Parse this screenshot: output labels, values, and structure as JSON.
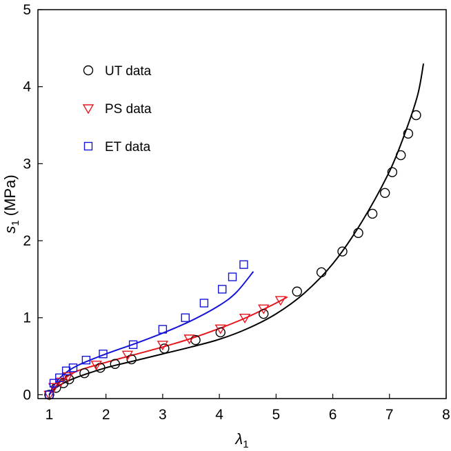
{
  "chart_data": {
    "type": "scatter",
    "xlabel": "λ",
    "xlabel_sub": "1",
    "ylabel": "s",
    "ylabel_sub": "1",
    "ylabel_unit": " (MPa)",
    "xlim": [
      0.8,
      8
    ],
    "ylim": [
      -0.05,
      5
    ],
    "xticks": [
      1,
      2,
      3,
      4,
      5,
      6,
      7,
      8
    ],
    "yticks": [
      0,
      1,
      2,
      3,
      4,
      5
    ],
    "grid": false,
    "legend_position": "top-left",
    "series": [
      {
        "name": "UT data",
        "marker": "circle",
        "color": "#000000",
        "points": [
          [
            1.0,
            0.0
          ],
          [
            1.12,
            0.09
          ],
          [
            1.25,
            0.15
          ],
          [
            1.35,
            0.2
          ],
          [
            1.62,
            0.28
          ],
          [
            1.9,
            0.35
          ],
          [
            2.16,
            0.4
          ],
          [
            2.45,
            0.46
          ],
          [
            3.03,
            0.6
          ],
          [
            3.58,
            0.71
          ],
          [
            4.02,
            0.81
          ],
          [
            4.78,
            1.05
          ],
          [
            5.37,
            1.34
          ],
          [
            5.8,
            1.59
          ],
          [
            6.17,
            1.86
          ],
          [
            6.45,
            2.1
          ],
          [
            6.7,
            2.35
          ],
          [
            6.92,
            2.62
          ],
          [
            7.05,
            2.89
          ],
          [
            7.2,
            3.11
          ],
          [
            7.33,
            3.39
          ],
          [
            7.47,
            3.63
          ]
        ]
      },
      {
        "name": "PS data",
        "marker": "triangle-down",
        "color": "#e8141c",
        "points": [
          [
            1.0,
            0.0
          ],
          [
            1.08,
            0.1
          ],
          [
            1.2,
            0.17
          ],
          [
            1.33,
            0.24
          ],
          [
            1.83,
            0.39
          ],
          [
            2.38,
            0.52
          ],
          [
            3.0,
            0.65
          ],
          [
            3.47,
            0.73
          ],
          [
            4.02,
            0.86
          ],
          [
            4.45,
            1.0
          ],
          [
            4.78,
            1.12
          ],
          [
            5.08,
            1.23
          ]
        ]
      },
      {
        "name": "ET data",
        "marker": "square",
        "color": "#1414d8",
        "points": [
          [
            1.0,
            0.0
          ],
          [
            1.08,
            0.15
          ],
          [
            1.18,
            0.22
          ],
          [
            1.3,
            0.31
          ],
          [
            1.42,
            0.35
          ],
          [
            1.65,
            0.45
          ],
          [
            1.95,
            0.53
          ],
          [
            2.48,
            0.65
          ],
          [
            3.0,
            0.85
          ],
          [
            3.4,
            1.0
          ],
          [
            3.73,
            1.19
          ],
          [
            4.05,
            1.37
          ],
          [
            4.23,
            1.53
          ],
          [
            4.43,
            1.69
          ]
        ]
      }
    ],
    "fits": [
      {
        "color": "#000000",
        "points": [
          [
            1.0,
            0.0
          ],
          [
            1.1,
            0.08
          ],
          [
            1.25,
            0.15
          ],
          [
            1.5,
            0.23
          ],
          [
            2.0,
            0.35
          ],
          [
            2.5,
            0.44
          ],
          [
            3.0,
            0.53
          ],
          [
            3.5,
            0.62
          ],
          [
            4.0,
            0.72
          ],
          [
            4.5,
            0.86
          ],
          [
            5.0,
            1.05
          ],
          [
            5.5,
            1.32
          ],
          [
            6.0,
            1.7
          ],
          [
            6.5,
            2.23
          ],
          [
            7.0,
            2.9
          ],
          [
            7.3,
            3.45
          ],
          [
            7.5,
            3.9
          ],
          [
            7.6,
            4.3
          ]
        ]
      },
      {
        "color": "#e8141c",
        "points": [
          [
            1.0,
            0.0
          ],
          [
            1.1,
            0.1
          ],
          [
            1.25,
            0.2
          ],
          [
            1.5,
            0.31
          ],
          [
            2.0,
            0.42
          ],
          [
            2.5,
            0.52
          ],
          [
            3.0,
            0.62
          ],
          [
            3.5,
            0.73
          ],
          [
            4.0,
            0.86
          ],
          [
            4.5,
            1.01
          ],
          [
            5.0,
            1.19
          ],
          [
            5.2,
            1.27
          ]
        ]
      },
      {
        "color": "#1414d8",
        "points": [
          [
            1.0,
            0.0
          ],
          [
            1.1,
            0.14
          ],
          [
            1.25,
            0.26
          ],
          [
            1.5,
            0.38
          ],
          [
            2.0,
            0.53
          ],
          [
            2.5,
            0.66
          ],
          [
            3.0,
            0.8
          ],
          [
            3.5,
            0.96
          ],
          [
            4.0,
            1.16
          ],
          [
            4.3,
            1.33
          ],
          [
            4.6,
            1.6
          ]
        ]
      }
    ]
  }
}
